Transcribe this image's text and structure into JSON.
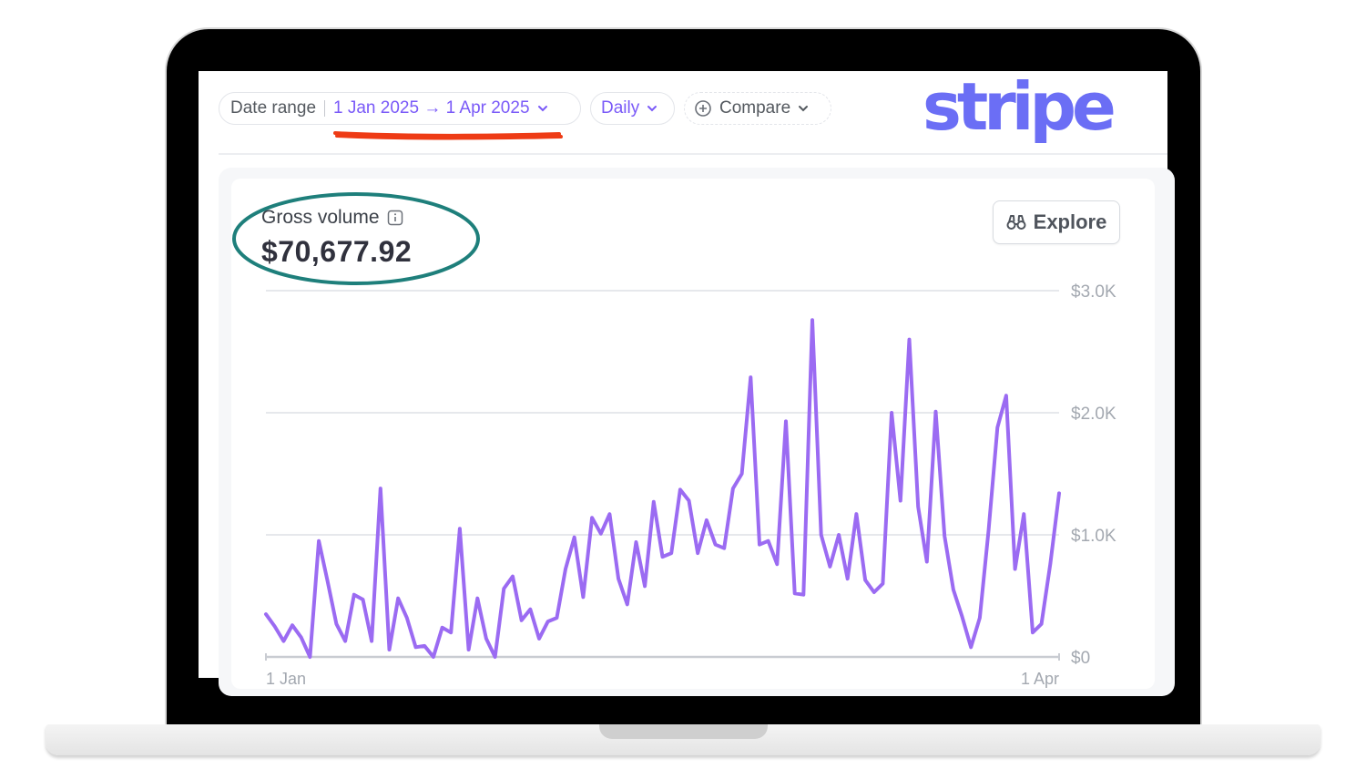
{
  "filters": {
    "date_range_label": "Date range",
    "date_range_value": "1 Jan 2025 → 1 Apr 2025",
    "interval_value": "Daily",
    "compare_label": "Compare"
  },
  "brand": {
    "logo_text": "stripe",
    "color": "#6b6ef5"
  },
  "metric": {
    "title": "Gross volume",
    "value": "$70,677.92"
  },
  "explore_label": "Explore",
  "colors": {
    "accent": "#7a5af8",
    "line": "#9b6bf2",
    "underline": "#ee3b15",
    "ellipse": "#1e7f7b"
  },
  "chart_data": {
    "type": "line",
    "title": "Gross volume",
    "x": [
      "2025-01-01",
      "2025-01-02",
      "2025-01-03",
      "2025-01-04",
      "2025-01-05",
      "2025-01-06",
      "2025-01-07",
      "2025-01-08",
      "2025-01-09",
      "2025-01-10",
      "2025-01-11",
      "2025-01-12",
      "2025-01-13",
      "2025-01-14",
      "2025-01-15",
      "2025-01-16",
      "2025-01-17",
      "2025-01-18",
      "2025-01-19",
      "2025-01-20",
      "2025-01-21",
      "2025-01-22",
      "2025-01-23",
      "2025-01-24",
      "2025-01-25",
      "2025-01-26",
      "2025-01-27",
      "2025-01-28",
      "2025-01-29",
      "2025-01-30",
      "2025-01-31",
      "2025-02-01",
      "2025-02-02",
      "2025-02-03",
      "2025-02-04",
      "2025-02-05",
      "2025-02-06",
      "2025-02-07",
      "2025-02-08",
      "2025-02-09",
      "2025-02-10",
      "2025-02-11",
      "2025-02-12",
      "2025-02-13",
      "2025-02-14",
      "2025-02-15",
      "2025-02-16",
      "2025-02-17",
      "2025-02-18",
      "2025-02-19",
      "2025-02-20",
      "2025-02-21",
      "2025-02-22",
      "2025-02-23",
      "2025-02-24",
      "2025-02-25",
      "2025-02-26",
      "2025-02-27",
      "2025-02-28",
      "2025-03-01",
      "2025-03-02",
      "2025-03-03",
      "2025-03-04",
      "2025-03-05",
      "2025-03-06",
      "2025-03-07",
      "2025-03-08",
      "2025-03-09",
      "2025-03-10",
      "2025-03-11",
      "2025-03-12",
      "2025-03-13",
      "2025-03-14",
      "2025-03-15",
      "2025-03-16",
      "2025-03-17",
      "2025-03-18",
      "2025-03-19",
      "2025-03-20",
      "2025-03-21",
      "2025-03-22",
      "2025-03-23",
      "2025-03-24",
      "2025-03-25",
      "2025-03-26",
      "2025-03-27",
      "2025-03-28",
      "2025-03-29",
      "2025-03-30",
      "2025-03-31",
      "2025-04-01"
    ],
    "series": [
      {
        "values": [
          350,
          250,
          130,
          260,
          160,
          0,
          950,
          620,
          270,
          130,
          510,
          470,
          130,
          1380,
          60,
          480,
          320,
          80,
          90,
          0,
          240,
          200,
          1050,
          60,
          480,
          150,
          0,
          560,
          660,
          300,
          390,
          150,
          290,
          320,
          720,
          980,
          490,
          1140,
          1010,
          1170,
          640,
          430,
          940,
          580,
          1270,
          820,
          850,
          1370,
          1280,
          850,
          1120,
          920,
          890,
          1380,
          1500,
          2290,
          920,
          950,
          760,
          1930,
          520,
          510,
          2760,
          1000,
          740,
          1000,
          640,
          1170,
          630,
          530,
          600,
          2000,
          1280,
          2600,
          1230,
          780,
          2010,
          990,
          550,
          330,
          80,
          320,
          1040,
          1880,
          2140,
          720,
          1170,
          200,
          270,
          760,
          1340
        ]
      }
    ],
    "xlim": [
      "2025-01-01",
      "2025-04-01"
    ],
    "ylim": [
      0,
      3000
    ],
    "y_ticks": [
      0,
      1000,
      2000,
      3000
    ],
    "y_tick_labels": [
      "$0",
      "$1.0K",
      "$2.0K",
      "$3.0K"
    ],
    "x_tick_labels": [
      "1 Jan",
      "1 Apr"
    ],
    "grid": true,
    "legend": "none"
  }
}
